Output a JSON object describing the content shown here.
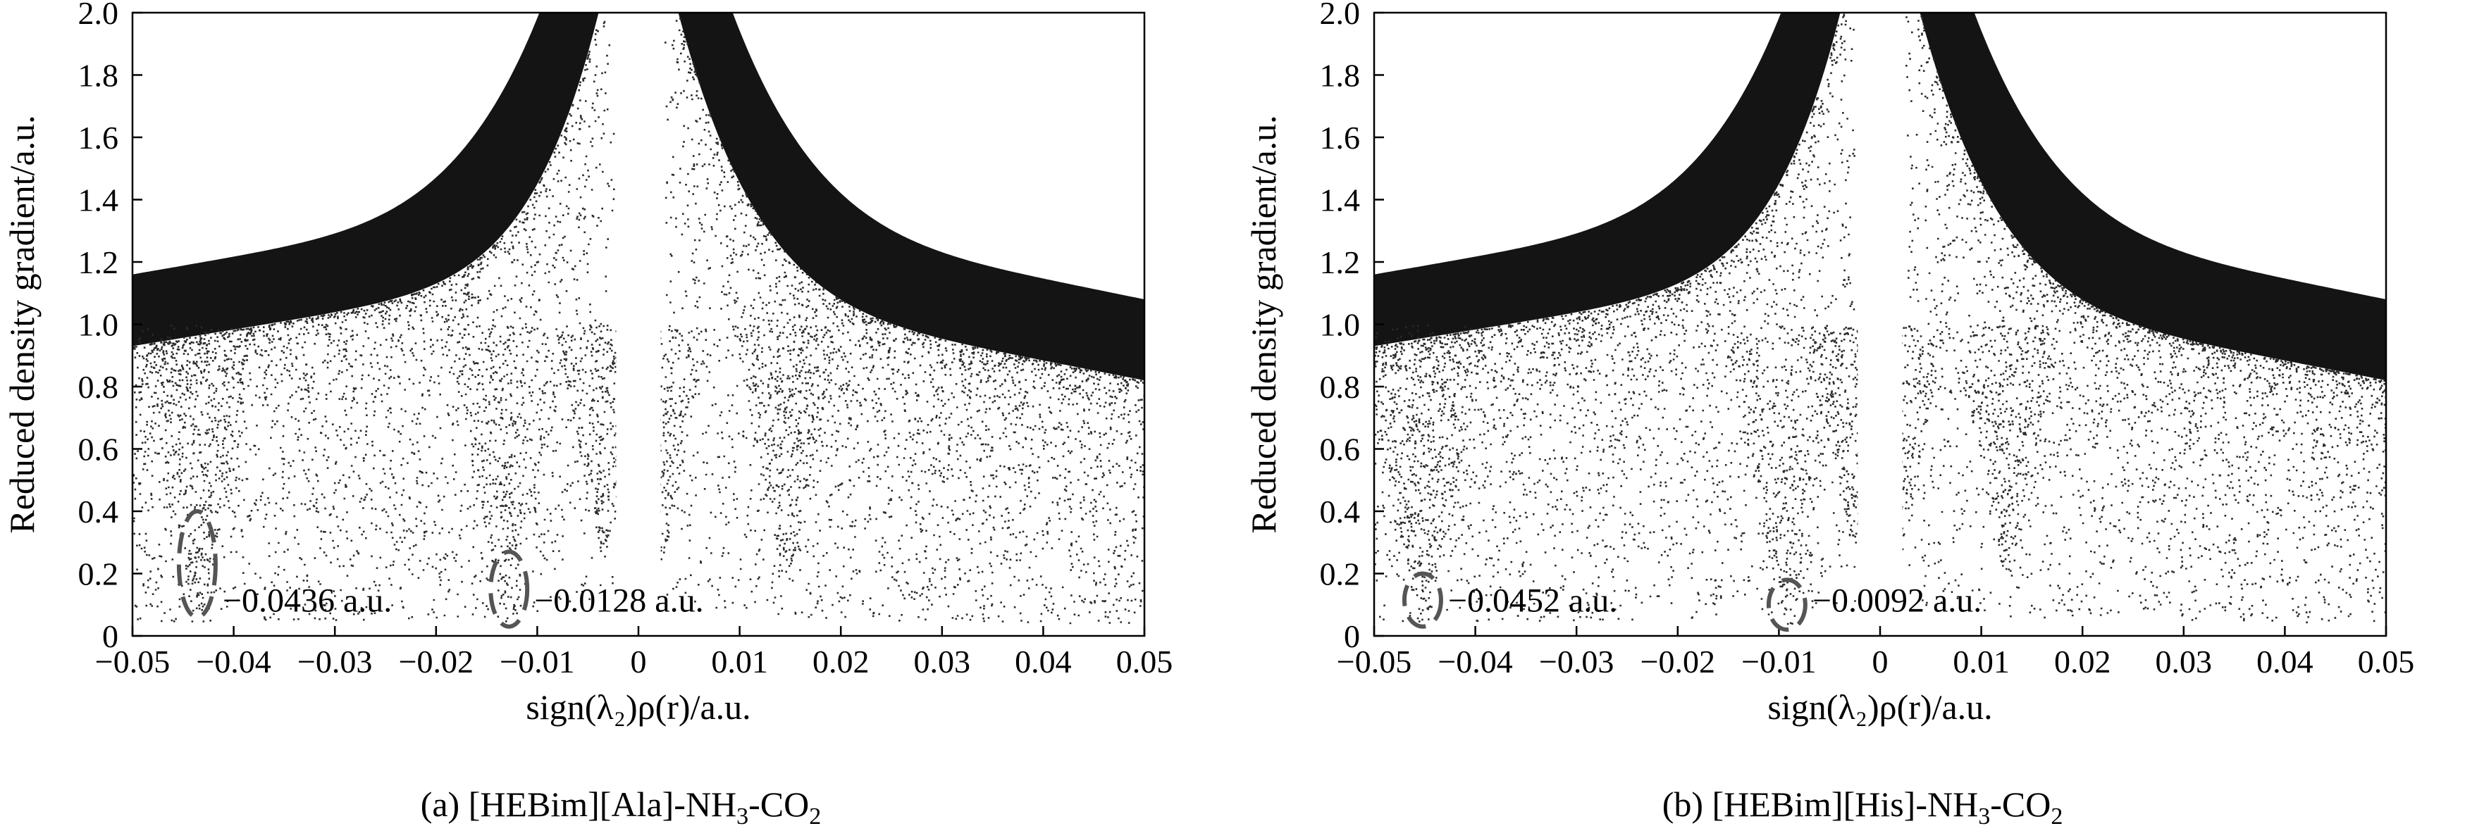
{
  "chart_data": [
    {
      "type": "scatter",
      "caption_prefix": "(a) [HEBim][Ala]-NH",
      "caption_sub1": "3",
      "caption_mid": "-CO",
      "caption_sub2": "2",
      "xlabel": "sign(λ₂)ρ(r)/a.u.",
      "ylabel": "Reduced density gradient/a.u.",
      "xlim": [
        -0.05,
        0.05
      ],
      "ylim": [
        0,
        2.0
      ],
      "xticks": [
        -0.05,
        -0.04,
        -0.03,
        -0.02,
        -0.01,
        0,
        0.01,
        0.02,
        0.03,
        0.04,
        0.05
      ],
      "xtick_labels": [
        "−0.05",
        "−0.04",
        "−0.03",
        "−0.02",
        "−0.01",
        "0",
        "0.01",
        "0.02",
        "0.03",
        "0.04",
        "0.05"
      ],
      "yticks": [
        0,
        0.2,
        0.4,
        0.6,
        0.8,
        1.0,
        1.2,
        1.4,
        1.6,
        1.8,
        2.0
      ],
      "ytick_labels": [
        "0",
        "0.2",
        "0.4",
        "0.6",
        "0.8",
        "1.0",
        "1.2",
        "1.4",
        "1.6",
        "1.8",
        "2.0"
      ],
      "annotations": [
        {
          "x": -0.0436,
          "y_low": 0.06,
          "y_high": 0.4,
          "text": "−0.0436 a.u."
        },
        {
          "x": -0.0128,
          "y_low": 0.03,
          "y_high": 0.27,
          "text": "−0.0128 a.u."
        }
      ],
      "spikes": [
        {
          "x": -0.0436,
          "y_min": 0.06
        },
        {
          "x": -0.0128,
          "y_min": 0.04
        },
        {
          "x": -0.0035,
          "y_min": 0.28
        },
        {
          "x": 0.0018,
          "y_min": 0.22
        },
        {
          "x": 0.0145,
          "y_min": 0.2
        }
      ],
      "seed": 11
    },
    {
      "type": "scatter",
      "caption_prefix": "(b) [HEBim][His]-NH",
      "caption_sub1": "3",
      "caption_mid": "-CO",
      "caption_sub2": "2",
      "xlabel": "sign(λ₂)ρ(r)/a.u.",
      "ylabel": "Reduced density gradient/a.u.",
      "xlim": [
        -0.05,
        0.05
      ],
      "ylim": [
        0,
        2.0
      ],
      "xticks": [
        -0.05,
        -0.04,
        -0.03,
        -0.02,
        -0.01,
        0,
        0.01,
        0.02,
        0.03,
        0.04,
        0.05
      ],
      "xtick_labels": [
        "−0.05",
        "−0.04",
        "−0.03",
        "−0.02",
        "−0.01",
        "0",
        "0.01",
        "0.02",
        "0.03",
        "0.04",
        "0.05"
      ],
      "yticks": [
        0,
        0.2,
        0.4,
        0.6,
        0.8,
        1.0,
        1.2,
        1.4,
        1.6,
        1.8,
        2.0
      ],
      "ytick_labels": [
        "0",
        "0.2",
        "0.4",
        "0.6",
        "0.8",
        "1.0",
        "1.2",
        "1.4",
        "1.6",
        "1.8",
        "2.0"
      ],
      "annotations": [
        {
          "x": -0.0452,
          "y_low": 0.03,
          "y_high": 0.2,
          "text": "−0.0452 a.u."
        },
        {
          "x": -0.0092,
          "y_low": 0.02,
          "y_high": 0.18,
          "text": "−0.0092 a.u."
        }
      ],
      "spikes": [
        {
          "x": -0.0452,
          "y_min": 0.04
        },
        {
          "x": -0.0092,
          "y_min": 0.03
        },
        {
          "x": -0.0025,
          "y_min": 0.3
        },
        {
          "x": 0.0015,
          "y_min": 0.24
        },
        {
          "x": 0.0125,
          "y_min": 0.2
        }
      ],
      "seed": 23
    }
  ]
}
